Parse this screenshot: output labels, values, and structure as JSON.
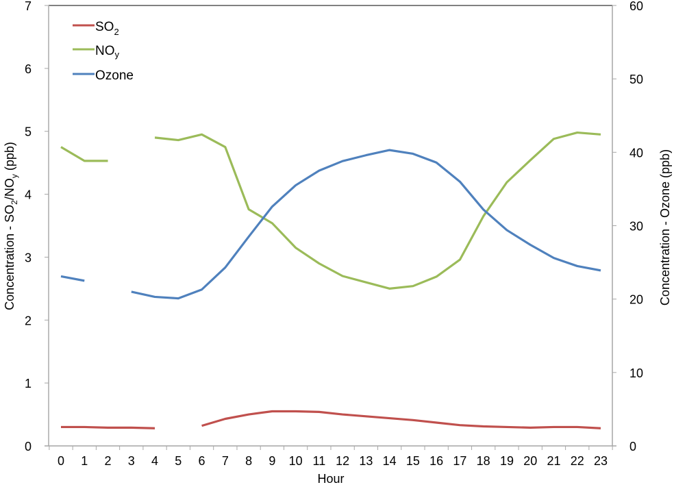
{
  "chart_data": {
    "type": "line",
    "title": "",
    "xlabel": "Hour",
    "ylabel": "Concentration - SO2/NOy (ppb)",
    "ylabel_right": "Concentration - Ozone (ppb)",
    "x": [
      0,
      1,
      2,
      3,
      4,
      5,
      6,
      7,
      8,
      9,
      10,
      11,
      12,
      13,
      14,
      15,
      16,
      17,
      18,
      19,
      20,
      21,
      22,
      23
    ],
    "ylim": [
      0,
      7
    ],
    "ylim_right": [
      0,
      60
    ],
    "yticks": [
      0,
      1,
      2,
      3,
      4,
      5,
      6,
      7
    ],
    "yticks_right": [
      0,
      10,
      20,
      30,
      40,
      50,
      60
    ],
    "grid": false,
    "legend_position": "upper-left",
    "series": [
      {
        "name": "SO2",
        "axis": "left",
        "color": "#c0504d",
        "values": [
          0.3,
          0.3,
          0.29,
          0.29,
          0.28,
          null,
          0.32,
          0.43,
          0.5,
          0.55,
          0.55,
          0.54,
          0.5,
          0.47,
          0.44,
          0.41,
          0.37,
          0.33,
          0.31,
          0.3,
          0.29,
          0.3,
          0.3,
          0.28
        ]
      },
      {
        "name": "NOy",
        "axis": "left",
        "color": "#9bbb59",
        "values": [
          4.75,
          4.53,
          4.53,
          null,
          4.9,
          4.86,
          4.95,
          4.75,
          3.76,
          3.54,
          3.15,
          2.9,
          2.7,
          2.6,
          2.5,
          2.54,
          2.69,
          2.96,
          3.65,
          4.19,
          4.54,
          4.88,
          4.98,
          4.95
        ]
      },
      {
        "name": "Ozone",
        "axis": "right",
        "color": "#4f81bd",
        "values": [
          23.1,
          22.5,
          null,
          21.0,
          20.3,
          20.1,
          21.3,
          24.3,
          28.5,
          32.6,
          35.5,
          37.5,
          38.8,
          39.6,
          40.3,
          39.8,
          38.6,
          36.0,
          32.2,
          29.4,
          27.4,
          25.6,
          24.5,
          23.9
        ]
      }
    ]
  },
  "legend": {
    "items": [
      {
        "label": "SO",
        "sub": "2",
        "color": "#c0504d"
      },
      {
        "label": "NO",
        "sub": "y",
        "color": "#9bbb59"
      },
      {
        "label": "Ozone",
        "sub": "",
        "color": "#4f81bd"
      }
    ]
  },
  "axes": {
    "x_title": "Hour",
    "y_left_title_parts": [
      "Concentration - SO",
      "2",
      "/NO",
      "y",
      " (ppb)"
    ],
    "y_right_title": "Concentration - Ozone (ppb)"
  }
}
